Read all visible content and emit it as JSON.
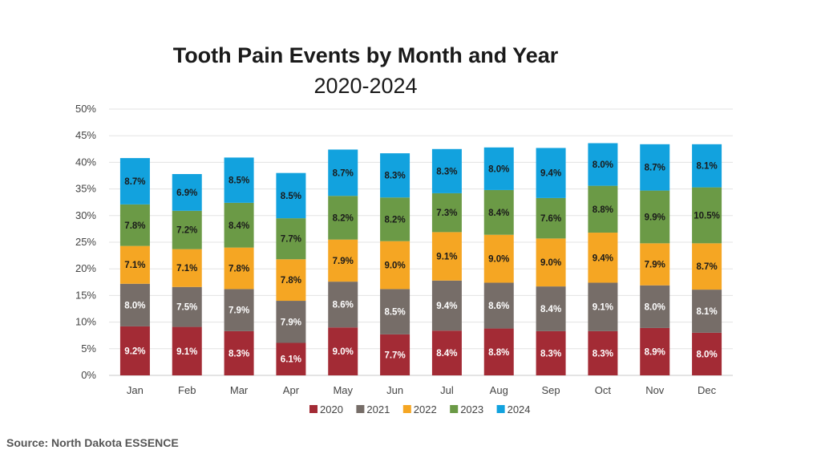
{
  "chart_data": {
    "type": "bar",
    "stacked": true,
    "title": "Tooth Pain Events by Month and Year",
    "subtitle": "2020-2024",
    "categories": [
      "Jan",
      "Feb",
      "Mar",
      "Apr",
      "May",
      "Jun",
      "Jul",
      "Aug",
      "Sep",
      "Oct",
      "Nov",
      "Dec"
    ],
    "series": [
      {
        "name": "2020",
        "color": "#a32b35",
        "values": [
          9.2,
          9.1,
          8.3,
          6.1,
          9.0,
          7.7,
          8.4,
          8.8,
          8.3,
          8.3,
          8.9,
          8.0
        ],
        "labels": [
          "9.2%",
          "9.1%",
          "8.3%",
          "6.1%",
          "9.0%",
          "7.7%",
          "8.4%",
          "8.8%",
          "8.3%",
          "8.3%",
          "8.9%",
          "8.0%"
        ]
      },
      {
        "name": "2021",
        "color": "#766d68",
        "values": [
          8.0,
          7.5,
          7.9,
          7.9,
          8.6,
          8.5,
          9.4,
          8.6,
          8.4,
          9.1,
          8.0,
          8.1
        ],
        "labels": [
          "8.0%",
          "7.5%",
          "7.9%",
          "7.9%",
          "8.6%",
          "8.5%",
          "9.4%",
          "8.6%",
          "8.4%",
          "9.1%",
          "8.0%",
          "8.1%"
        ]
      },
      {
        "name": "2022",
        "color": "#f5a623",
        "values": [
          7.1,
          7.1,
          7.8,
          7.8,
          7.9,
          9.0,
          9.1,
          9.0,
          9.0,
          9.4,
          7.9,
          8.7
        ],
        "labels": [
          "7.1%",
          "7.1%",
          "7.8%",
          "7.8%",
          "7.9%",
          "9.0%",
          "9.1%",
          "9.0%",
          "9.0%",
          "9.4%",
          "7.9%",
          "8.7%"
        ]
      },
      {
        "name": "2023",
        "color": "#6b9a46",
        "values": [
          7.8,
          7.2,
          8.4,
          7.7,
          8.2,
          8.2,
          7.3,
          8.4,
          7.6,
          8.8,
          9.9,
          10.5
        ],
        "labels": [
          "7.8%",
          "7.2%",
          "8.4%",
          "7.7%",
          "8.2%",
          "8.2%",
          "7.3%",
          "8.4%",
          "7.6%",
          "8.8%",
          "9.9%",
          "10.5%"
        ]
      },
      {
        "name": "2024",
        "color": "#12a2de",
        "values": [
          8.7,
          6.9,
          8.5,
          8.5,
          8.7,
          8.3,
          8.3,
          8.0,
          9.4,
          8.0,
          8.7,
          8.1
        ],
        "labels": [
          "8.7%",
          "6.9%",
          "8.5%",
          "8.5%",
          "8.7%",
          "8.3%",
          "8.3%",
          "8.0%",
          "9.4%",
          "8.0%",
          "8.7%",
          "8.1%"
        ]
      }
    ],
    "ylim": [
      0,
      50
    ],
    "yticks": [
      0,
      5,
      10,
      15,
      20,
      25,
      30,
      35,
      40,
      45,
      50
    ],
    "ytick_labels": [
      "0%",
      "5%",
      "10%",
      "15%",
      "20%",
      "25%",
      "30%",
      "35%",
      "40%",
      "45%",
      "50%"
    ],
    "grid": true,
    "legend_position": "bottom",
    "xlabel": "",
    "ylabel": ""
  },
  "source": "Source: North Dakota ESSENCE"
}
